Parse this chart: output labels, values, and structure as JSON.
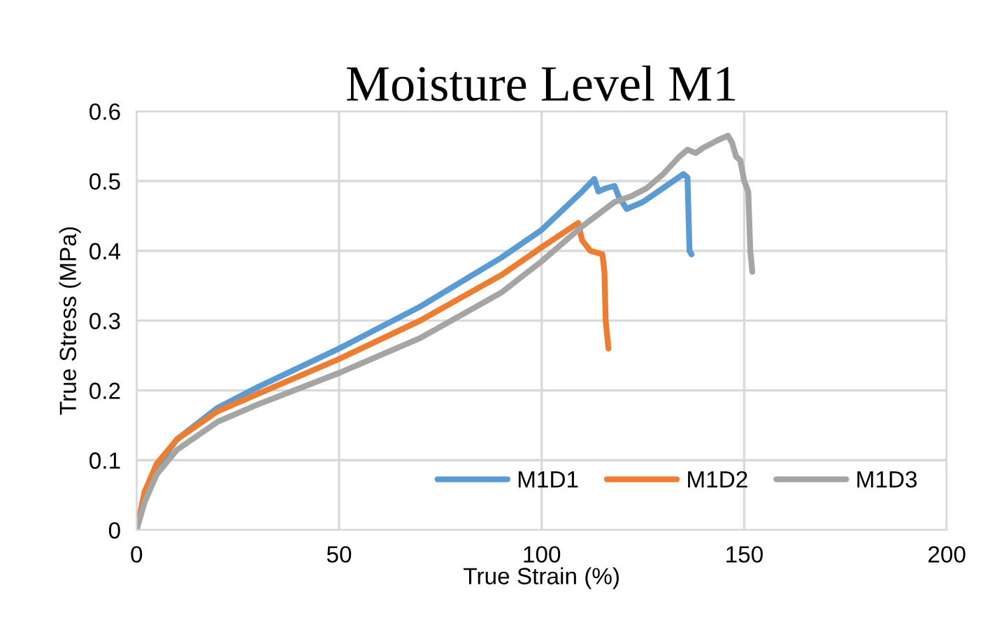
{
  "chart_data": {
    "type": "line",
    "title": "Moisture Level M1",
    "xlabel": "True Strain (%)",
    "ylabel": "True Stress (MPa)",
    "xlim": [
      0,
      200
    ],
    "xticks": [
      0,
      50,
      100,
      150,
      200
    ],
    "ylim": [
      0,
      0.6
    ],
    "yticks": [
      0,
      0.1,
      0.2,
      0.3,
      0.4,
      0.5,
      0.6
    ],
    "grid": true,
    "legend": "bottom right",
    "marker": "none",
    "line_style": "solid",
    "series": [
      {
        "name": "M1D1",
        "color": "#5b9bd5",
        "x": [
          0,
          2,
          5,
          10,
          20,
          30,
          50,
          70,
          90,
          100,
          110,
          113,
          114,
          116,
          118,
          119,
          121,
          125,
          130,
          135,
          136,
          136.5,
          137
        ],
        "values": [
          0,
          0.05,
          0.09,
          0.13,
          0.175,
          0.205,
          0.26,
          0.32,
          0.39,
          0.43,
          0.485,
          0.503,
          0.485,
          0.49,
          0.493,
          0.478,
          0.46,
          0.47,
          0.49,
          0.51,
          0.505,
          0.4,
          0.395
        ]
      },
      {
        "name": "M1D2",
        "color": "#ed7d31",
        "x": [
          0,
          2,
          5,
          10,
          20,
          30,
          50,
          70,
          90,
          100,
          109,
          110,
          112,
          115,
          115.5,
          115.8,
          116.5
        ],
        "values": [
          0,
          0.055,
          0.095,
          0.13,
          0.17,
          0.195,
          0.245,
          0.3,
          0.365,
          0.405,
          0.44,
          0.415,
          0.4,
          0.395,
          0.37,
          0.3,
          0.26
        ]
      },
      {
        "name": "M1D3",
        "color": "#a5a5a5",
        "x": [
          0,
          2,
          5,
          10,
          20,
          30,
          50,
          70,
          90,
          100,
          110,
          118,
          122,
          126,
          130,
          134,
          136,
          138,
          140,
          144,
          146,
          147,
          148,
          149,
          150,
          151,
          151.5,
          152
        ],
        "values": [
          0,
          0.04,
          0.08,
          0.115,
          0.155,
          0.18,
          0.225,
          0.275,
          0.34,
          0.385,
          0.435,
          0.47,
          0.478,
          0.49,
          0.51,
          0.535,
          0.545,
          0.54,
          0.548,
          0.56,
          0.565,
          0.555,
          0.535,
          0.53,
          0.5,
          0.485,
          0.4,
          0.37
        ]
      }
    ]
  }
}
